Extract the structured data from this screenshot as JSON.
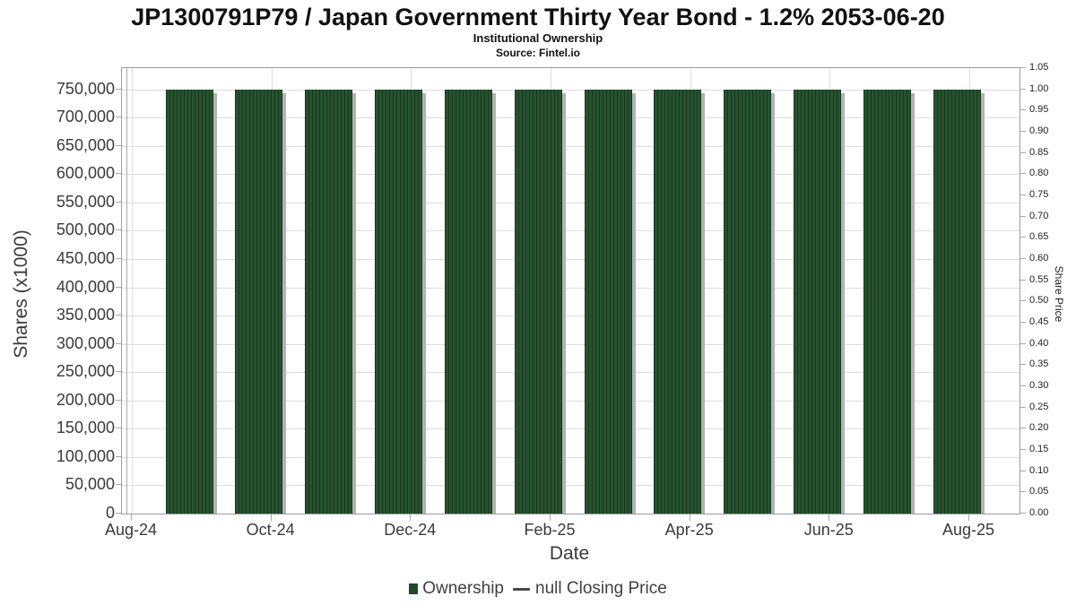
{
  "chart_data": {
    "type": "bar",
    "title": "JP1300791P79 / Japan Government Thirty Year Bond - 1.2% 2053-06-20",
    "subtitle": "Institutional Ownership",
    "source": "Source: Fintel.io",
    "xlabel": "Date",
    "ylabel": "Shares (x1000)",
    "ylabel_right": "Share Price",
    "categories": [
      "Sep-24",
      "Oct-24",
      "Nov-24",
      "Dec-24",
      "Jan-25",
      "Feb-25",
      "Mar-25",
      "Apr-25",
      "May-25",
      "Jun-25",
      "Jul-25",
      "Aug-25"
    ],
    "series": [
      {
        "name": "Ownership",
        "type": "bar",
        "values": [
          750000,
          750000,
          750000,
          750000,
          750000,
          750000,
          750000,
          750000,
          750000,
          750000,
          750000,
          750000
        ]
      },
      {
        "name": "null Closing Price",
        "type": "line",
        "values": []
      }
    ],
    "x_axis_ticks": [
      "Aug-24",
      "Oct-24",
      "Dec-24",
      "Feb-25",
      "Apr-25",
      "Jun-25",
      "Aug-25"
    ],
    "y_axis_left": {
      "max": 787500,
      "tick_values": [
        0,
        50000,
        100000,
        150000,
        200000,
        250000,
        300000,
        350000,
        400000,
        450000,
        500000,
        550000,
        600000,
        650000,
        700000,
        750000
      ],
      "ticks": [
        "0",
        "50,000",
        "100,000",
        "150,000",
        "200,000",
        "250,000",
        "300,000",
        "350,000",
        "400,000",
        "450,000",
        "500,000",
        "550,000",
        "600,000",
        "650,000",
        "700,000",
        "750,000"
      ]
    },
    "y_axis_right": {
      "max": 1.05,
      "tick_values": [
        0,
        0.05,
        0.1,
        0.15,
        0.2,
        0.25,
        0.3,
        0.35,
        0.4,
        0.45,
        0.5,
        0.55,
        0.6,
        0.65,
        0.7,
        0.75,
        0.8,
        0.85,
        0.9,
        0.95,
        1.0,
        1.05
      ],
      "ticks": [
        "0.00",
        "0.05",
        "0.10",
        "0.15",
        "0.20",
        "0.25",
        "0.30",
        "0.35",
        "0.40",
        "0.45",
        "0.50",
        "0.55",
        "0.60",
        "0.65",
        "0.70",
        "0.75",
        "0.80",
        "0.85",
        "0.90",
        "0.95",
        "1.00",
        "1.05"
      ]
    },
    "grid": true,
    "legend_position": "bottom",
    "bar_color": "#1f4a28",
    "bar_stripe_color": "#275230",
    "shadow_color": "#b2b2b2",
    "legend": [
      {
        "label": "Ownership",
        "marker": "square",
        "color": "#1f4a28"
      },
      {
        "label": "null Closing Price",
        "marker": "dash",
        "color": "#4a4a4a"
      }
    ]
  }
}
